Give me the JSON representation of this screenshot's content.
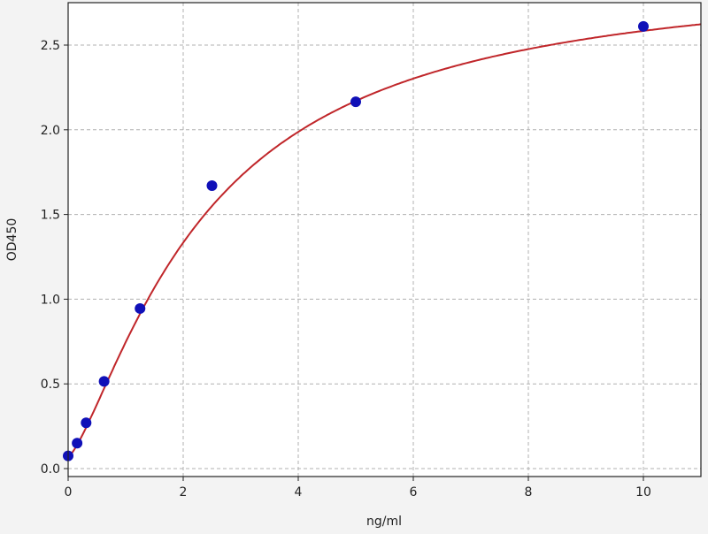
{
  "chart_data": {
    "type": "scatter",
    "title": "",
    "xlabel": "ng/ml",
    "ylabel": "OD450",
    "xlim": [
      0,
      11
    ],
    "ylim": [
      -0.05,
      2.75
    ],
    "xticks": [
      0,
      2,
      4,
      6,
      8,
      10
    ],
    "yticks": [
      0.0,
      0.5,
      1.0,
      1.5,
      2.0,
      2.5
    ],
    "xtick_labels": [
      "0",
      "2",
      "4",
      "6",
      "8",
      "10"
    ],
    "ytick_labels": [
      "0.0",
      "0.5",
      "1.0",
      "1.5",
      "2.0",
      "2.5"
    ],
    "grid": true,
    "series": [
      {
        "kind": "points",
        "color": "#1010b8",
        "x": [
          0,
          0.156,
          0.3125,
          0.625,
          1.25,
          2.5,
          5,
          10
        ],
        "y": [
          0.075,
          0.15,
          0.27,
          0.515,
          0.945,
          1.67,
          2.165,
          2.61
        ]
      },
      {
        "kind": "fitted-curve",
        "color": "#c0262a"
      }
    ]
  }
}
